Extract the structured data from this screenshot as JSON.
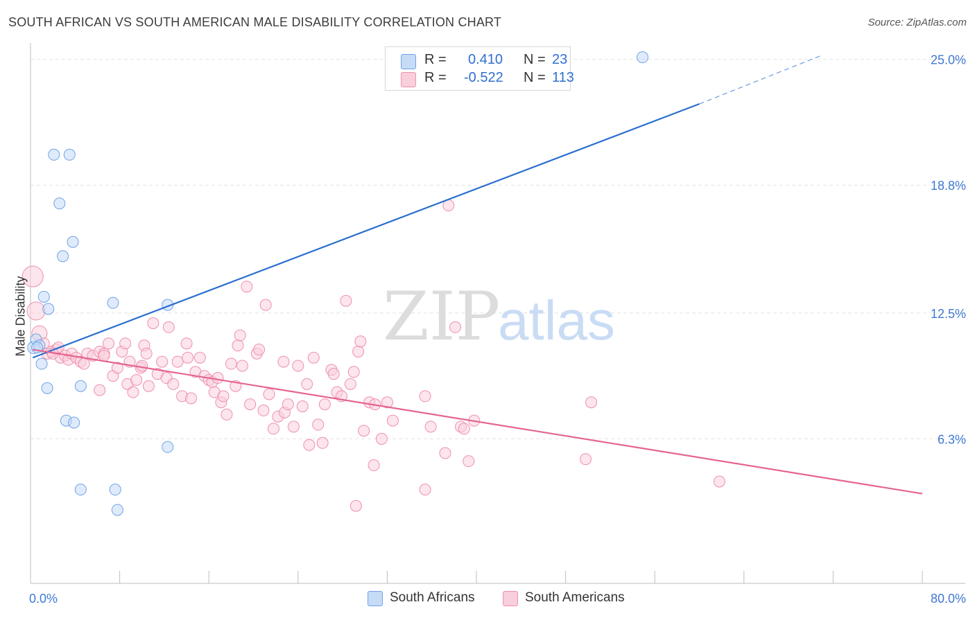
{
  "header": {
    "title": "SOUTH AFRICAN VS SOUTH AMERICAN MALE DISABILITY CORRELATION CHART",
    "source": "Source: ZipAtlas.com"
  },
  "watermark": {
    "part1": "ZIP",
    "part2": "atlas"
  },
  "legend": {
    "r_label": "R =",
    "n_label": "N =",
    "rows": [
      {
        "r": "0.410",
        "n": "23",
        "color": "#7aaef0"
      },
      {
        "r": "-0.522",
        "n": "113",
        "color": "#f3a3bd"
      }
    ]
  },
  "bottom_legend": [
    "South Africans",
    "South Americans"
  ],
  "chart_data": {
    "type": "scatter",
    "title": "SOUTH AFRICAN VS SOUTH AMERICAN MALE DISABILITY CORRELATION CHART",
    "xlabel": "",
    "ylabel": "Male Disability",
    "xlim": [
      0,
      80
    ],
    "ylim": [
      0,
      25.6
    ],
    "x_tick_labels": [
      "0.0%",
      "80.0%"
    ],
    "y_ticks": [
      6.3,
      12.5,
      18.8,
      25.0
    ],
    "y_tick_labels": [
      "6.3%",
      "12.5%",
      "18.8%",
      "25.0%"
    ],
    "grid": true,
    "series": [
      {
        "name": "South Africans",
        "color": "#6fa2e8",
        "fill": "#c5dbf6",
        "trend": {
          "x0": 0.2,
          "y0": 10.3,
          "x1": 60.0,
          "y1": 22.8,
          "dashed_to_x": 71.0,
          "dashed_to_y": 25.2,
          "color": "#2a6fcf"
        },
        "points": [
          [
            0.3,
            10.8
          ],
          [
            0.5,
            11.2
          ],
          [
            0.8,
            10.9
          ],
          [
            1.0,
            10.0
          ],
          [
            1.2,
            13.3
          ],
          [
            1.6,
            12.7
          ],
          [
            1.5,
            8.8
          ],
          [
            2.1,
            20.3
          ],
          [
            2.6,
            17.9
          ],
          [
            2.9,
            15.3
          ],
          [
            3.5,
            20.3
          ],
          [
            3.8,
            16.0
          ],
          [
            3.2,
            7.2
          ],
          [
            3.9,
            7.1
          ],
          [
            4.5,
            8.9
          ],
          [
            4.5,
            3.8
          ],
          [
            7.4,
            13.0
          ],
          [
            7.6,
            3.8
          ],
          [
            7.8,
            2.8
          ],
          [
            12.3,
            12.9
          ],
          [
            12.3,
            5.9
          ],
          [
            54.9,
            25.1
          ],
          [
            0.6,
            10.8
          ]
        ]
      },
      {
        "name": "South Americans",
        "color": "#ee8fae",
        "fill": "#f9cfdc",
        "trend": {
          "x0": 0.2,
          "y0": 10.7,
          "x1": 80.0,
          "y1": 3.6,
          "color": "#e4648f"
        },
        "points": [
          [
            0.2,
            14.3
          ],
          [
            0.5,
            12.6
          ],
          [
            0.8,
            11.5
          ],
          [
            1.2,
            11.0
          ],
          [
            1.5,
            10.5
          ],
          [
            1.9,
            10.6
          ],
          [
            2.3,
            10.7
          ],
          [
            2.7,
            10.3
          ],
          [
            2.5,
            10.8
          ],
          [
            3.1,
            10.4
          ],
          [
            3.4,
            10.2
          ],
          [
            3.7,
            10.5
          ],
          [
            4.1,
            10.3
          ],
          [
            4.5,
            10.1
          ],
          [
            4.8,
            10.0
          ],
          [
            5.1,
            10.5
          ],
          [
            5.6,
            10.4
          ],
          [
            6.2,
            10.6
          ],
          [
            6.6,
            10.5
          ],
          [
            7.0,
            11.0
          ],
          [
            6.2,
            8.7
          ],
          [
            7.4,
            9.4
          ],
          [
            7.8,
            9.8
          ],
          [
            8.2,
            10.6
          ],
          [
            8.5,
            11.0
          ],
          [
            8.7,
            9.0
          ],
          [
            8.9,
            10.1
          ],
          [
            9.2,
            8.6
          ],
          [
            9.5,
            9.2
          ],
          [
            9.9,
            9.8
          ],
          [
            10.2,
            10.9
          ],
          [
            10.4,
            10.5
          ],
          [
            10.6,
            8.9
          ],
          [
            11.0,
            12.0
          ],
          [
            11.4,
            9.5
          ],
          [
            11.8,
            10.1
          ],
          [
            12.2,
            9.3
          ],
          [
            12.4,
            11.8
          ],
          [
            12.8,
            9.0
          ],
          [
            13.2,
            10.1
          ],
          [
            13.6,
            8.4
          ],
          [
            14.0,
            11.0
          ],
          [
            14.1,
            10.3
          ],
          [
            14.4,
            8.3
          ],
          [
            14.8,
            9.6
          ],
          [
            15.2,
            10.3
          ],
          [
            15.6,
            9.4
          ],
          [
            16.0,
            9.2
          ],
          [
            16.3,
            9.1
          ],
          [
            16.5,
            8.6
          ],
          [
            16.8,
            9.3
          ],
          [
            17.1,
            8.1
          ],
          [
            17.3,
            8.4
          ],
          [
            17.6,
            7.5
          ],
          [
            18.0,
            10.0
          ],
          [
            18.4,
            8.9
          ],
          [
            18.6,
            10.9
          ],
          [
            18.8,
            11.4
          ],
          [
            19.0,
            9.9
          ],
          [
            19.4,
            13.8
          ],
          [
            19.7,
            8.0
          ],
          [
            20.3,
            10.5
          ],
          [
            20.5,
            10.7
          ],
          [
            20.9,
            7.7
          ],
          [
            21.1,
            12.9
          ],
          [
            21.4,
            8.5
          ],
          [
            21.8,
            6.8
          ],
          [
            22.2,
            7.4
          ],
          [
            22.7,
            10.1
          ],
          [
            22.8,
            7.6
          ],
          [
            23.1,
            8.0
          ],
          [
            23.6,
            6.9
          ],
          [
            24.0,
            9.9
          ],
          [
            24.4,
            7.9
          ],
          [
            24.8,
            9.0
          ],
          [
            25.0,
            6.0
          ],
          [
            25.4,
            10.3
          ],
          [
            25.8,
            7.0
          ],
          [
            26.2,
            6.1
          ],
          [
            26.4,
            8.0
          ],
          [
            27.0,
            9.7
          ],
          [
            27.2,
            9.5
          ],
          [
            27.5,
            8.6
          ],
          [
            27.9,
            8.4
          ],
          [
            28.3,
            13.1
          ],
          [
            28.7,
            9.0
          ],
          [
            29.0,
            9.6
          ],
          [
            29.4,
            10.6
          ],
          [
            29.6,
            11.1
          ],
          [
            29.9,
            6.7
          ],
          [
            30.4,
            8.1
          ],
          [
            30.8,
            5.0
          ],
          [
            31.5,
            6.3
          ],
          [
            32.0,
            8.1
          ],
          [
            32.5,
            7.2
          ],
          [
            35.4,
            8.4
          ],
          [
            35.9,
            6.9
          ],
          [
            35.4,
            3.8
          ],
          [
            37.2,
            5.6
          ],
          [
            38.6,
            6.9
          ],
          [
            38.9,
            6.8
          ],
          [
            39.3,
            5.2
          ],
          [
            39.8,
            7.2
          ],
          [
            38.1,
            11.8
          ],
          [
            37.5,
            17.8
          ],
          [
            29.2,
            3.0
          ],
          [
            49.8,
            5.3
          ],
          [
            50.3,
            8.1
          ],
          [
            61.8,
            4.2
          ],
          [
            30.9,
            8.0
          ],
          [
            6.6,
            10.4
          ],
          [
            10.0,
            9.9
          ],
          [
            2.0,
            10.5
          ]
        ]
      }
    ]
  }
}
